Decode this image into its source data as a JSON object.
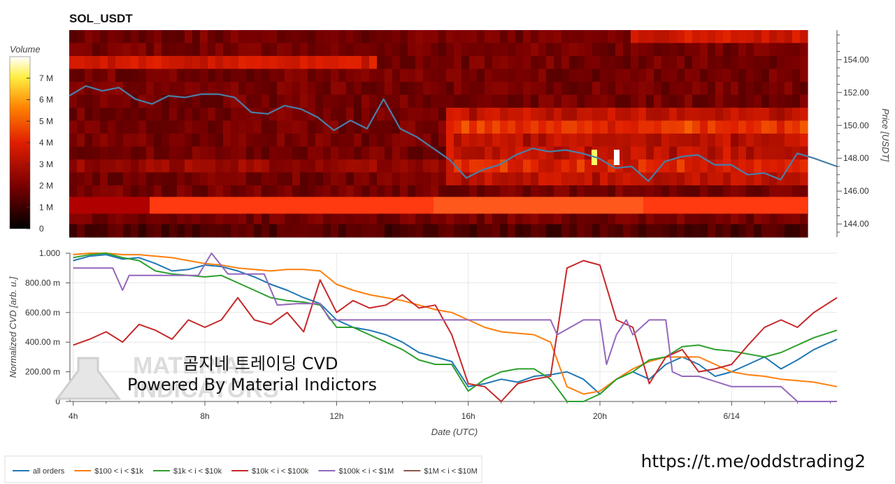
{
  "page": {
    "url": "https://t.me/oddstrading2"
  },
  "watermark": {
    "ghost_line1": "MATERIAL",
    "ghost_line2": "INDICATORS",
    "line1": "곰지네 트레이딩 CVD",
    "line2": "Powered By Material Indictors"
  },
  "chart_data": [
    {
      "type": "heatmap",
      "title": "SOL_USDT",
      "ylabel": "Price [USDT]",
      "yticks": [
        "154.00",
        "152.00",
        "150.00",
        "148.00",
        "146.00",
        "144.00"
      ],
      "ytick_values": [
        154,
        152,
        150,
        148,
        146,
        144
      ],
      "ylim": [
        143.2,
        155.8
      ],
      "colorbar": {
        "label": "Volume",
        "ticks": [
          "7 M",
          "6 M",
          "5 M",
          "4 M",
          "3 M",
          "2 M",
          "1 M",
          "0"
        ],
        "tick_values": [
          7,
          6,
          5,
          4,
          3,
          2,
          1,
          0
        ],
        "range": [
          0,
          8
        ]
      },
      "xlim": [
        4,
        27.2
      ],
      "price_line": {
        "color": "#4a7fa7",
        "x": [
          4,
          4.5,
          5,
          5.5,
          6,
          6.5,
          7,
          7.5,
          8,
          8.5,
          9,
          9.5,
          10,
          10.5,
          11,
          11.5,
          12,
          12.5,
          13,
          13.5,
          14,
          14.5,
          15,
          15.5,
          16,
          16.5,
          17,
          17.5,
          18,
          18.5,
          19,
          19.5,
          20,
          20.5,
          21,
          21.5,
          22,
          22.5,
          23,
          23.5,
          24,
          24.5,
          25,
          25.5,
          26,
          26.5,
          27.2
        ],
        "y": [
          151.8,
          152.4,
          152.1,
          152.3,
          151.6,
          151.3,
          151.8,
          151.7,
          151.9,
          151.9,
          151.7,
          150.8,
          150.7,
          151.2,
          151.0,
          150.5,
          149.7,
          150.3,
          149.8,
          151.6,
          149.8,
          149.3,
          148.6,
          147.9,
          146.8,
          147.3,
          147.6,
          148.2,
          148.6,
          148.4,
          148.5,
          148.3,
          148.0,
          147.4,
          147.5,
          146.6,
          147.8,
          148.1,
          148.2,
          147.6,
          147.6,
          147.0,
          147.1,
          146.7,
          148.3,
          148.0,
          147.5
        ]
      }
    },
    {
      "type": "line",
      "ylabel": "Normalized CVD [arb. u.]",
      "xlabel": "Date (UTC)",
      "xticks": [
        "4h",
        "8h",
        "12h",
        "16h",
        "20h",
        "6/14"
      ],
      "xtick_values": [
        4,
        8,
        12,
        16,
        20,
        24
      ],
      "yticks": [
        "1.000",
        "800.00 m",
        "600.00 m",
        "400.00 m",
        "200.00 m",
        "0"
      ],
      "ytick_values": [
        1.0,
        0.8,
        0.6,
        0.4,
        0.2,
        0.0
      ],
      "xlim": [
        3.9,
        27.2
      ],
      "ylim": [
        0,
        1
      ],
      "legend_position": "bottom-left",
      "series": [
        {
          "name": "all orders",
          "color": "#1f77b4",
          "x": [
            4,
            4.5,
            5,
            5.5,
            6,
            6.5,
            7,
            7.5,
            8,
            8.5,
            9,
            9.5,
            10,
            10.5,
            11,
            11.5,
            12,
            12.5,
            13,
            13.5,
            14,
            14.5,
            15,
            15.5,
            16,
            16.5,
            17,
            17.5,
            18,
            18.5,
            19,
            19.5,
            20,
            20.5,
            21,
            21.5,
            22,
            22.5,
            23,
            23.5,
            24,
            24.5,
            25,
            25.5,
            26,
            26.5,
            27.2
          ],
          "y": [
            0.95,
            0.98,
            0.99,
            0.96,
            0.97,
            0.93,
            0.88,
            0.89,
            0.92,
            0.91,
            0.88,
            0.84,
            0.79,
            0.75,
            0.7,
            0.66,
            0.55,
            0.5,
            0.48,
            0.45,
            0.4,
            0.33,
            0.3,
            0.27,
            0.1,
            0.12,
            0.15,
            0.13,
            0.17,
            0.18,
            0.2,
            0.15,
            0.05,
            0.15,
            0.2,
            0.15,
            0.25,
            0.3,
            0.25,
            0.17,
            0.2,
            0.25,
            0.3,
            0.22,
            0.28,
            0.35,
            0.42
          ]
        },
        {
          "name": "$100 < i < $1k",
          "color": "#ff7f0e",
          "x": [
            4,
            4.5,
            5,
            5.5,
            6,
            6.5,
            7,
            7.5,
            8,
            8.5,
            9,
            9.5,
            10,
            10.5,
            11,
            11.5,
            12,
            12.5,
            13,
            13.5,
            14,
            14.5,
            15,
            15.5,
            16,
            16.5,
            17,
            17.5,
            18,
            18.5,
            19,
            19.5,
            20,
            20.5,
            21,
            21.5,
            22,
            22.5,
            23,
            23.5,
            24,
            24.5,
            25,
            25.5,
            26,
            26.5,
            27.2
          ],
          "y": [
            0.99,
            1.0,
            1.0,
            0.99,
            0.99,
            0.98,
            0.97,
            0.95,
            0.93,
            0.92,
            0.9,
            0.89,
            0.88,
            0.89,
            0.89,
            0.88,
            0.79,
            0.75,
            0.72,
            0.7,
            0.68,
            0.65,
            0.62,
            0.6,
            0.55,
            0.5,
            0.47,
            0.46,
            0.45,
            0.4,
            0.1,
            0.05,
            0.07,
            0.15,
            0.22,
            0.27,
            0.3,
            0.3,
            0.3,
            0.25,
            0.2,
            0.18,
            0.17,
            0.15,
            0.14,
            0.13,
            0.1
          ]
        },
        {
          "name": "$1k < i < $10k",
          "color": "#2ca02c",
          "x": [
            4,
            4.5,
            5,
            5.5,
            6,
            6.5,
            7,
            7.5,
            8,
            8.5,
            9,
            9.5,
            10,
            10.5,
            11,
            11.5,
            12,
            12.5,
            13,
            13.5,
            14,
            14.5,
            15,
            15.5,
            16,
            16.5,
            17,
            17.5,
            18,
            18.5,
            19,
            19.5,
            20,
            20.5,
            21,
            21.5,
            22,
            22.5,
            23,
            23.5,
            24,
            24.5,
            25,
            25.5,
            26,
            26.5,
            27.2
          ],
          "y": [
            0.97,
            0.99,
            1.0,
            0.97,
            0.95,
            0.88,
            0.86,
            0.85,
            0.84,
            0.85,
            0.8,
            0.75,
            0.7,
            0.68,
            0.67,
            0.65,
            0.5,
            0.5,
            0.45,
            0.4,
            0.35,
            0.28,
            0.25,
            0.25,
            0.07,
            0.15,
            0.2,
            0.22,
            0.22,
            0.15,
            0.0,
            0.0,
            0.05,
            0.15,
            0.2,
            0.28,
            0.3,
            0.37,
            0.38,
            0.35,
            0.34,
            0.32,
            0.3,
            0.33,
            0.38,
            0.43,
            0.48
          ]
        },
        {
          "name": "$10k < i < $100k",
          "color": "#c62828",
          "x": [
            4,
            4.5,
            5,
            5.5,
            6,
            6.5,
            7,
            7.5,
            8,
            8.5,
            9,
            9.5,
            10,
            10.5,
            11,
            11.5,
            12,
            12.5,
            13,
            13.5,
            14,
            14.5,
            15,
            15.5,
            16,
            16.5,
            17,
            17.5,
            18,
            18.5,
            19,
            19.5,
            20,
            20.5,
            21,
            21.5,
            22,
            22.5,
            23,
            23.5,
            24,
            24.5,
            25,
            25.5,
            26,
            26.5,
            27.2
          ],
          "y": [
            0.38,
            0.42,
            0.47,
            0.4,
            0.52,
            0.48,
            0.42,
            0.55,
            0.5,
            0.55,
            0.7,
            0.55,
            0.52,
            0.6,
            0.47,
            0.82,
            0.6,
            0.68,
            0.63,
            0.65,
            0.72,
            0.63,
            0.65,
            0.45,
            0.12,
            0.1,
            0.0,
            0.12,
            0.15,
            0.17,
            0.9,
            0.95,
            0.92,
            0.55,
            0.5,
            0.12,
            0.3,
            0.35,
            0.2,
            0.22,
            0.25,
            0.38,
            0.5,
            0.55,
            0.5,
            0.6,
            0.7
          ]
        },
        {
          "name": "$100k < i < $1M",
          "color": "#9467bd",
          "x": [
            4,
            5.2,
            5.5,
            5.7,
            6,
            6.8,
            7.2,
            7.8,
            8.2,
            8.7,
            9.3,
            9.8,
            10.2,
            10.8,
            11.5,
            11.8,
            12,
            13,
            15,
            16,
            17,
            18,
            18.5,
            18.7,
            19.5,
            20,
            20.2,
            20.5,
            20.8,
            21,
            21.5,
            22,
            22.2,
            22.5,
            23,
            24,
            25,
            25.5,
            26,
            27.2
          ],
          "y": [
            0.9,
            0.9,
            0.75,
            0.85,
            0.85,
            0.85,
            0.85,
            0.85,
            1.0,
            0.86,
            0.86,
            0.86,
            0.65,
            0.66,
            0.66,
            0.55,
            0.55,
            0.55,
            0.55,
            0.55,
            0.55,
            0.55,
            0.55,
            0.45,
            0.55,
            0.55,
            0.25,
            0.45,
            0.55,
            0.45,
            0.55,
            0.55,
            0.2,
            0.17,
            0.17,
            0.1,
            0.1,
            0.1,
            0.0,
            0.0
          ]
        },
        {
          "name": "$1M < i < $10M",
          "color": "#8c564b",
          "x": [],
          "y": []
        }
      ]
    }
  ]
}
